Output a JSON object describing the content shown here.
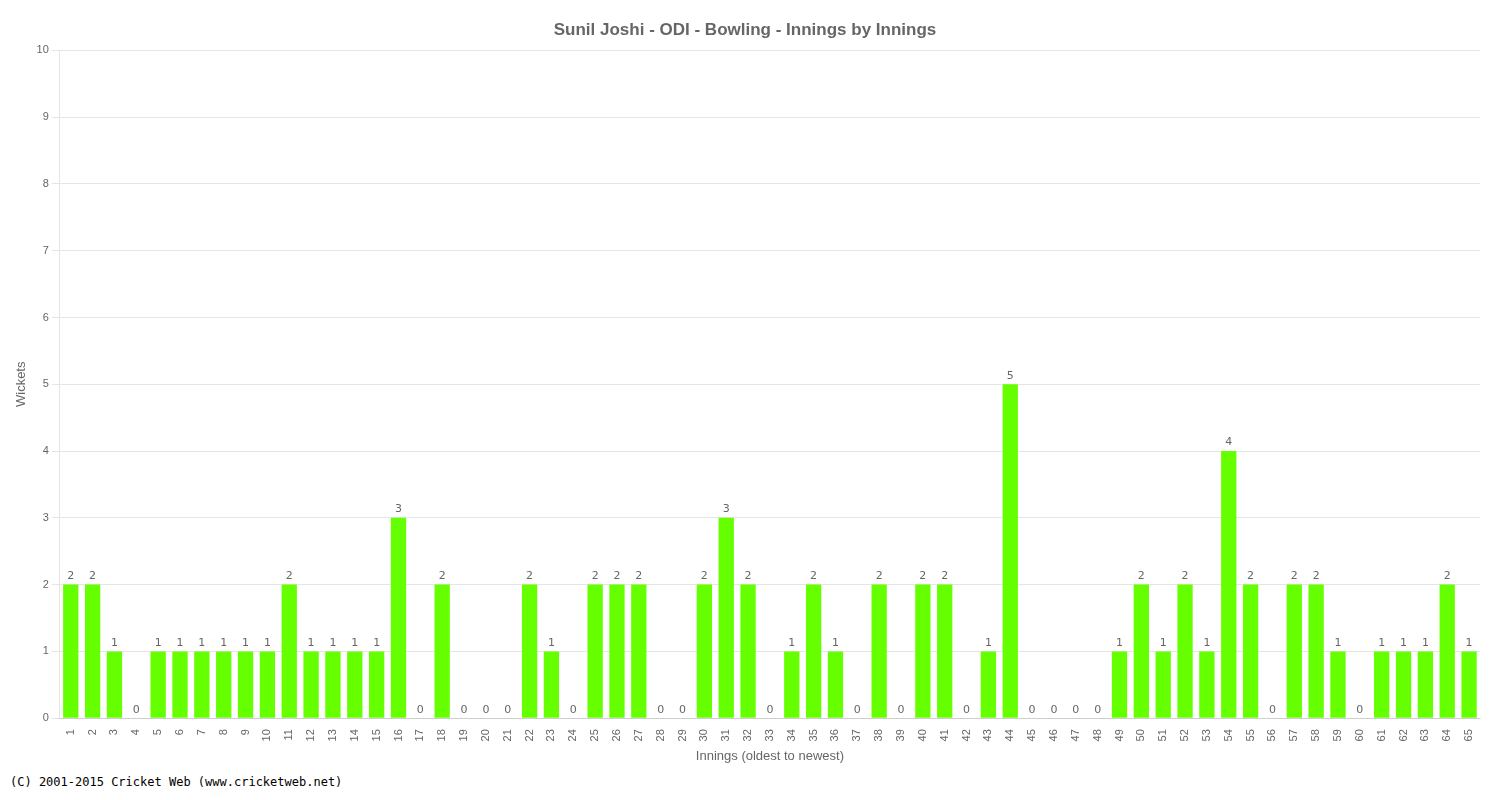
{
  "chart_data": {
    "type": "bar",
    "title": "Sunil Joshi - ODI - Bowling - Innings by Innings",
    "xlabel": "Innings (oldest to newest)",
    "ylabel": "Wickets",
    "categories": [
      "1",
      "2",
      "3",
      "4",
      "5",
      "6",
      "7",
      "8",
      "9",
      "10",
      "11",
      "12",
      "13",
      "14",
      "15",
      "16",
      "17",
      "18",
      "19",
      "20",
      "21",
      "22",
      "23",
      "24",
      "25",
      "26",
      "27",
      "28",
      "29",
      "30",
      "31",
      "32",
      "33",
      "34",
      "35",
      "36",
      "37",
      "38",
      "39",
      "40",
      "41",
      "42",
      "43",
      "44",
      "45",
      "46",
      "47",
      "48",
      "49",
      "50",
      "51",
      "52",
      "53",
      "54",
      "55",
      "56",
      "57",
      "58",
      "59",
      "60",
      "61",
      "62",
      "63",
      "64",
      "65"
    ],
    "values": [
      2,
      2,
      1,
      0,
      1,
      1,
      1,
      1,
      1,
      1,
      2,
      1,
      1,
      1,
      1,
      3,
      0,
      2,
      0,
      0,
      0,
      2,
      1,
      0,
      2,
      2,
      2,
      0,
      0,
      2,
      3,
      2,
      0,
      1,
      2,
      1,
      0,
      2,
      0,
      2,
      2,
      0,
      1,
      5,
      0,
      0,
      0,
      0,
      1,
      2,
      1,
      2,
      1,
      4,
      2,
      0,
      2,
      2,
      1,
      0,
      1,
      1,
      1,
      2,
      1
    ],
    "color": "#66FF00",
    "ylim": [
      0,
      10
    ],
    "yticks": [
      0,
      1,
      2,
      3,
      4,
      5,
      6,
      7,
      8,
      9,
      10
    ],
    "grid": true,
    "data_labels": true,
    "annotations": [
      "(C) 2001-2015 Cricket Web (www.cricketweb.net)"
    ]
  }
}
